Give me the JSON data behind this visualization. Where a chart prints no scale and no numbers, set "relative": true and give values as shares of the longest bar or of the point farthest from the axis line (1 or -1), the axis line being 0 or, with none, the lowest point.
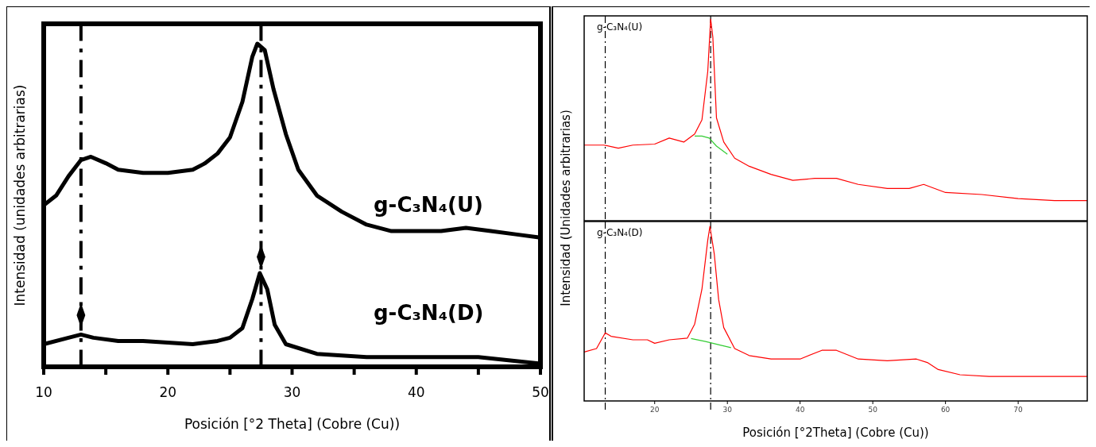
{
  "chart_data": [
    {
      "type": "line",
      "xlabel": "Posición [°2 Theta] (Cobre (Cu))",
      "ylabel": "Intensidad (unidades arbitrarias)",
      "relative": true,
      "xlim": [
        10,
        50
      ],
      "xticks": [
        10,
        {
          "value": 15,
          "label": null
        },
        20,
        {
          "value": 25,
          "label": null
        },
        30,
        {
          "value": 35,
          "label": null
        },
        40,
        {
          "value": 45,
          "label": null
        },
        50
      ],
      "series": [
        {
          "name": "g-C₃N₄(U)",
          "color": "#000000",
          "x": [
            10,
            11,
            12,
            13,
            13.8,
            15,
            16,
            18,
            20,
            22,
            23,
            24,
            25,
            26,
            26.8,
            27.2,
            27.8,
            28.5,
            29.5,
            30.5,
            32,
            34,
            36,
            38,
            40,
            42,
            44,
            46,
            48,
            50
          ],
          "values": [
            0.5,
            0.53,
            0.59,
            0.64,
            0.65,
            0.63,
            0.61,
            0.6,
            0.6,
            0.61,
            0.63,
            0.66,
            0.71,
            0.82,
            0.96,
            1,
            0.98,
            0.86,
            0.72,
            0.61,
            0.53,
            0.48,
            0.44,
            0.42,
            0.42,
            0.42,
            0.43,
            0.42,
            0.41,
            0.4
          ]
        },
        {
          "name": "g-C₃N₄(D)",
          "color": "#000000",
          "x": [
            10,
            12,
            13,
            14,
            16,
            18,
            22,
            24,
            25,
            26,
            26.8,
            27.4,
            28,
            28.6,
            29.5,
            32,
            36,
            40,
            45,
            50
          ],
          "values": [
            0.07,
            0.09,
            0.1,
            0.09,
            0.08,
            0.08,
            0.07,
            0.08,
            0.09,
            0.12,
            0.21,
            0.29,
            0.24,
            0.13,
            0.07,
            0.04,
            0.03,
            0.03,
            0.03,
            0.01
          ]
        },
        {
          "type": "scatter",
          "marker": "diamond",
          "color": "#000000",
          "x": [
            13,
            27.5
          ],
          "values": [
            0.16,
            0.34
          ]
        }
      ],
      "ref_lines": [
        {
          "axis": "x",
          "value": 13,
          "line_style": "dashed",
          "color": "#000000"
        },
        {
          "axis": "x",
          "value": 27.5,
          "line_style": "dashed",
          "color": "#000000"
        }
      ]
    },
    {
      "type": "line",
      "ylabel": "Intensidad (Unidades arbitrarias)",
      "relative": true,
      "xlim": [
        10.3,
        79.5
      ],
      "series": [
        {
          "name": "g-C₃N₄(U)",
          "color": "#ff0000",
          "x": [
            10.3,
            13,
            15,
            17,
            20,
            22,
            24,
            25.5,
            26.5,
            27.3,
            27.7,
            28,
            28.5,
            29.5,
            31,
            33,
            36,
            39,
            42,
            45,
            48,
            52,
            55,
            57,
            60,
            65,
            70,
            75,
            79.5
          ],
          "values": [
            0.375,
            0.375,
            0.36,
            0.375,
            0.38,
            0.41,
            0.39,
            0.43,
            0.5,
            0.74,
            1,
            0.91,
            0.51,
            0.39,
            0.31,
            0.27,
            0.23,
            0.2,
            0.21,
            0.21,
            0.18,
            0.16,
            0.16,
            0.18,
            0.14,
            0.13,
            0.11,
            0.1,
            0.1
          ]
        },
        {
          "color": "#33cc33",
          "x": [
            25.5,
            26.5,
            27.5,
            28.5,
            30
          ],
          "values": [
            0.42,
            0.42,
            0.41,
            0.37,
            0.33
          ]
        }
      ],
      "ref_lines": [
        {
          "axis": "x",
          "value": 13.2,
          "line_style": "dashed",
          "color": "#000000"
        },
        {
          "axis": "x",
          "value": 27.7,
          "line_style": "dashed",
          "color": "#000000"
        }
      ]
    },
    {
      "type": "line",
      "xlabel": "Posición [°2Theta] (Cobre (Cu))",
      "relative": true,
      "xlim": [
        10.3,
        79.5
      ],
      "xticks": [
        20,
        30,
        40,
        50,
        60,
        70
      ],
      "series": [
        {
          "name": "g-C₃N₄(D)",
          "color": "#ff0000",
          "x": [
            10.3,
            12,
            13.2,
            14,
            17,
            19,
            20,
            22,
            24.5,
            25.5,
            26.5,
            27.3,
            27.6,
            28.2,
            28.8,
            29.5,
            31,
            33,
            36,
            40,
            43,
            45,
            48,
            52,
            56,
            57.5,
            59,
            62,
            66,
            70,
            75,
            79.5
          ],
          "values": [
            0.28,
            0.3,
            0.39,
            0.37,
            0.35,
            0.35,
            0.33,
            0.35,
            0.36,
            0.44,
            0.64,
            0.92,
            1,
            0.84,
            0.58,
            0.42,
            0.3,
            0.26,
            0.24,
            0.24,
            0.29,
            0.29,
            0.24,
            0.23,
            0.24,
            0.22,
            0.18,
            0.15,
            0.14,
            0.14,
            0.14,
            0.14
          ]
        },
        {
          "color": "#33cc33",
          "x": [
            25,
            27,
            29,
            30.5
          ],
          "values": [
            0.357,
            0.34,
            0.32,
            0.305
          ]
        }
      ],
      "ref_lines": [
        {
          "axis": "x",
          "value": 13.2,
          "line_style": "dashed",
          "color": "#000000"
        },
        {
          "axis": "x",
          "value": 27.7,
          "line_style": "dashed",
          "color": "#000000"
        }
      ]
    }
  ]
}
